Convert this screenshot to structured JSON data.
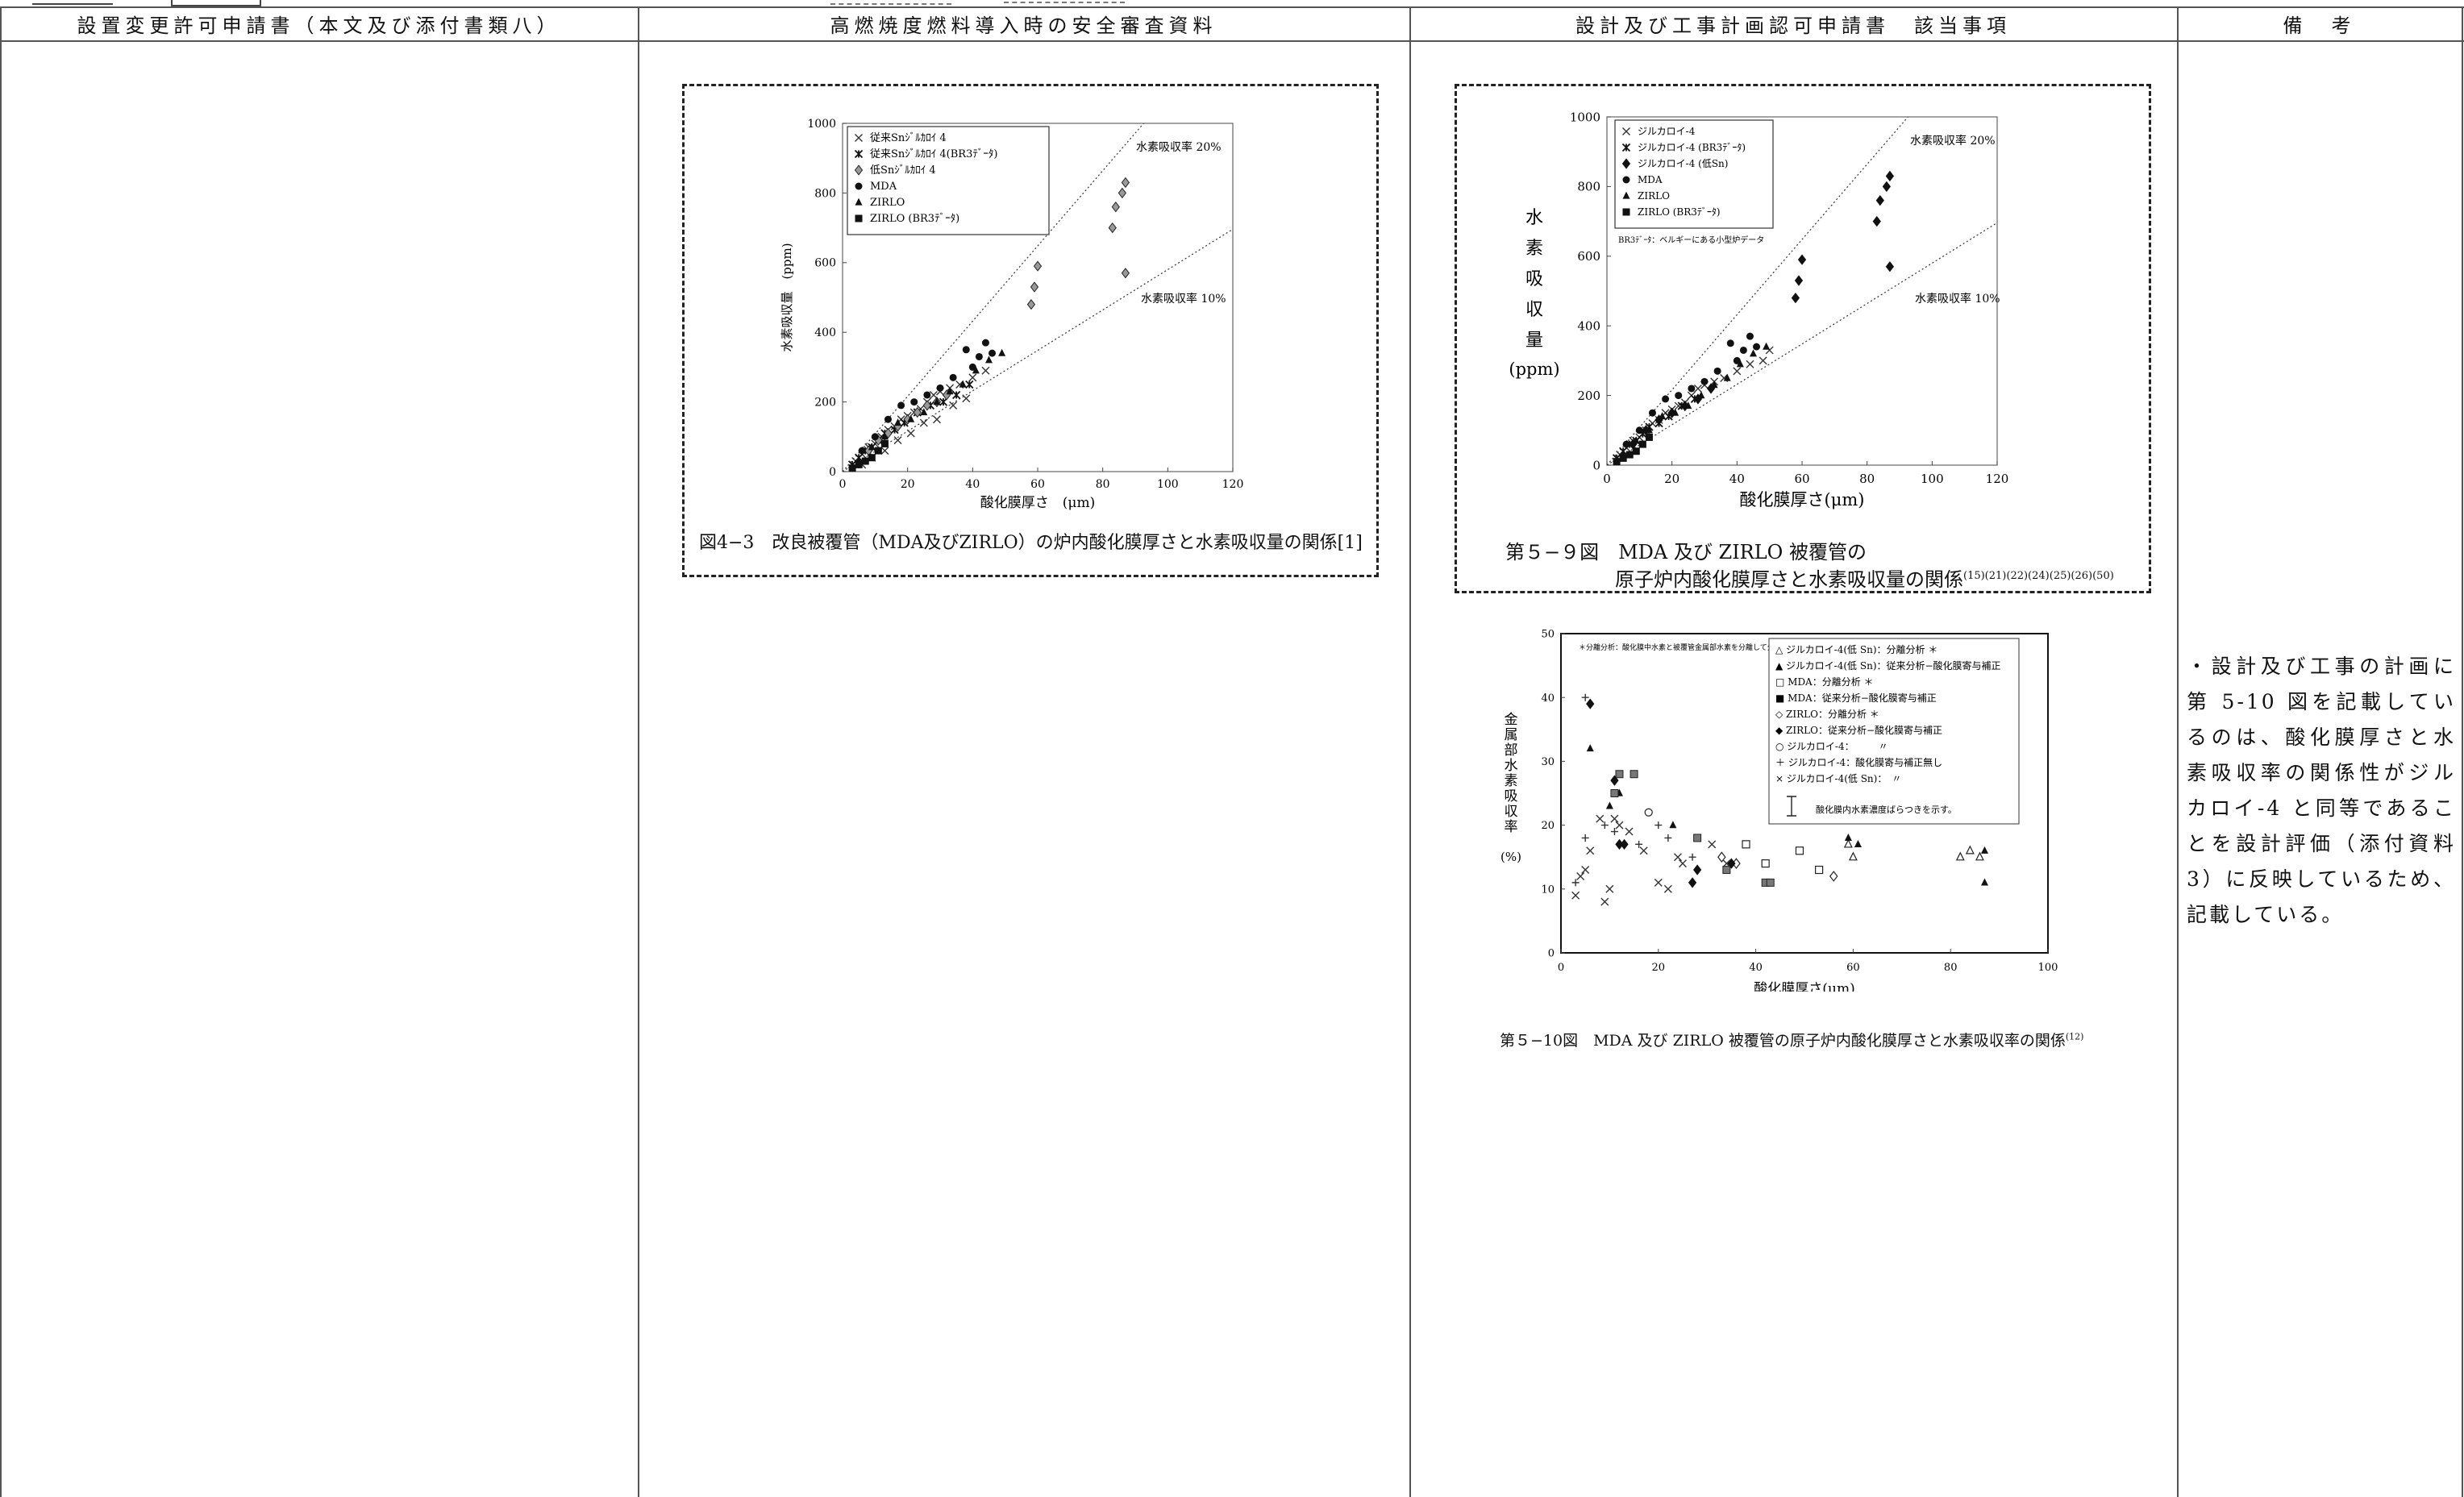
{
  "headers": {
    "col1": "設置変更許可申請書（本文及び添付書類八）",
    "col2": "高燃焼度燃料導入時の安全審査資料",
    "col3": "設計及び工事計画認可申請書　該当事項",
    "col4": "備　考"
  },
  "fig43": {
    "caption": "図4−3　改良被覆管（MDA及びZIRLO）の炉内酸化膜厚さと水素吸収量の関係[1]",
    "ylabel": "水素吸収量　(ppm)",
    "xlabel": "酸化膜厚さ　(μm)",
    "line_label_20": "水素吸収率 20%",
    "line_label_10": "水素吸収率 10%",
    "legend": [
      "従来Snｼﾞﾙｶﾛｲ 4",
      "従来Snｼﾞﾙｶﾛｲ 4(BR3ﾃﾞｰﾀ)",
      "低Snｼﾞﾙｶﾛｲ 4",
      "MDA",
      "ZIRLO",
      "ZIRLO (BR3ﾃﾞｰﾀ)"
    ]
  },
  "fig59": {
    "caption_line1": "第５−９図　MDA 及び ZIRLO 被覆管の",
    "caption_line2": "原子炉内酸化膜厚さと水素吸収量の関係",
    "caption_refs": "(15)(21)(22)(24)(25)(26)(50)",
    "ylabel_chars": [
      "水",
      "素",
      "吸",
      "収",
      "量"
    ],
    "ylabel_unit": "(ppm)",
    "xlabel": "酸化膜厚さ(μm)",
    "line_label_20": "水素吸収率 20%",
    "line_label_10": "水素吸収率 10%",
    "legend": [
      "ジルカロイ-4",
      "ジルカロイ-4 (BR3ﾃﾞｰﾀ)",
      "ジルカロイ-4 (低Sn)",
      "MDA",
      "ZIRLO",
      "ZIRLO (BR3ﾃﾞｰﾀ)"
    ],
    "legend_note": "BR3ﾃﾞｰﾀ：ベルギーにある小型炉データ"
  },
  "fig510": {
    "caption": "第５−10図　MDA 及び ZIRLO 被覆管の原子炉内酸化膜厚さと水素吸収率の関係",
    "caption_ref": "(12)",
    "ylabel_chars": [
      "金",
      "属",
      "部",
      "水",
      "素",
      "吸",
      "収",
      "率"
    ],
    "ylabel_unit": "(%)",
    "xlabel": "酸化膜厚さ(μm)",
    "note": "＊分離分析：酸化膜中水素と被覆管金属部水素を分離して分析した方法",
    "legend": [
      "△ ジルカロイ-4(低 Sn)：分離分析 ＊",
      "▲ ジルカロイ-4(低 Sn)：従来分析−酸化膜寄与補正",
      "□ MDA：分離分析 ＊",
      "■ MDA：従来分析−酸化膜寄与補正",
      "◇ ZIRLO：分離分析 ＊",
      "◆ ZIRLO：従来分析−酸化膜寄与補正",
      "○ ジルカロイ-4：　　　〃",
      "＋ ジルカロイ-4：酸化膜寄与補正無し",
      "× ジルカロイ-4(低 Sn)：　〃"
    ],
    "errorbar_note": "酸化膜内水素濃度ばらつきを示す。"
  },
  "remarks": "・設計及び工事の計画に第 5-10 図を記載しているのは、酸化膜厚さと水素吸収率の関係性がジルカロイ-4 と同等であることを設計評価（添付資料 3）に反映しているため、記載している。",
  "chart_data": [
    {
      "type": "scatter",
      "title": "",
      "xlabel": "酸化膜厚さ　(μm)",
      "ylabel": "水素吸収量　(ppm)",
      "xlim": [
        0,
        120
      ],
      "ylim": [
        0,
        1000
      ],
      "xticks": [
        0,
        20,
        40,
        60,
        80,
        100,
        120
      ],
      "yticks": [
        0,
        200,
        400,
        600,
        800,
        1000
      ],
      "reference_lines": [
        {
          "name": "水素吸収率 20%",
          "slope": 10.8
        },
        {
          "name": "水素吸収率 10%",
          "slope": 5.8
        }
      ],
      "series": [
        {
          "name": "従来Snｼﾞﾙｶﾛｲ 4",
          "marker": "x",
          "x": [
            4,
            6,
            8,
            10,
            12,
            14,
            16,
            18,
            20,
            22,
            24,
            26,
            28,
            30,
            33,
            36,
            40,
            44,
            6,
            9,
            13,
            17,
            21,
            25,
            29,
            34,
            38
          ],
          "y": [
            30,
            50,
            70,
            80,
            100,
            120,
            130,
            150,
            160,
            170,
            180,
            200,
            220,
            230,
            240,
            250,
            270,
            290,
            20,
            40,
            60,
            90,
            110,
            140,
            150,
            190,
            210
          ]
        },
        {
          "name": "従来Snｼﾞﾙｶﾛｲ 4(BR3ﾃﾞｰﾀ)",
          "marker": "asterisk",
          "x": [
            3,
            5,
            7,
            9,
            11,
            13,
            16,
            19,
            23,
            27,
            31,
            35,
            39
          ],
          "y": [
            20,
            40,
            60,
            70,
            90,
            110,
            120,
            140,
            170,
            190,
            200,
            220,
            250
          ]
        },
        {
          "name": "低Snｼﾞﾙｶﾛｲ 4",
          "marker": "diamond",
          "x": [
            8,
            11,
            14,
            17,
            20,
            23,
            26,
            29,
            32,
            58,
            59,
            60,
            83,
            84,
            86,
            87,
            87
          ],
          "y": [
            60,
            90,
            110,
            130,
            150,
            170,
            190,
            200,
            220,
            480,
            530,
            590,
            700,
            760,
            800,
            830,
            570
          ]
        },
        {
          "name": "MDA",
          "marker": "circle",
          "x": [
            6,
            10,
            14,
            18,
            22,
            26,
            30,
            34,
            38,
            40,
            42,
            44,
            46
          ],
          "y": [
            60,
            100,
            150,
            190,
            200,
            220,
            240,
            270,
            350,
            300,
            330,
            370,
            340
          ]
        },
        {
          "name": "ZIRLO",
          "marker": "triangle",
          "x": [
            5,
            9,
            13,
            17,
            21,
            25,
            29,
            33,
            37,
            41,
            45,
            49
          ],
          "y": [
            30,
            70,
            100,
            140,
            150,
            170,
            200,
            230,
            250,
            290,
            320,
            340
          ]
        },
        {
          "name": "ZIRLO (BR3ﾃﾞｰﾀ)",
          "marker": "square",
          "x": [
            3,
            5,
            7,
            9,
            11,
            13
          ],
          "y": [
            10,
            20,
            30,
            40,
            60,
            80
          ]
        }
      ]
    },
    {
      "type": "scatter",
      "title": "",
      "xlabel": "酸化膜厚さ(μm)",
      "ylabel": "水素吸収量 (ppm)",
      "xlim": [
        0,
        120
      ],
      "ylim": [
        0,
        1000
      ],
      "xticks": [
        0,
        20,
        40,
        60,
        80,
        100,
        120
      ],
      "yticks": [
        0,
        200,
        400,
        600,
        800,
        1000
      ],
      "reference_lines": [
        {
          "name": "水素吸収率 20%",
          "slope": 10.8
        },
        {
          "name": "水素吸収率 10%",
          "slope": 5.8
        }
      ],
      "series": [
        {
          "name": "ジルカロイ-4",
          "marker": "x",
          "x": [
            4,
            6,
            8,
            10,
            12,
            14,
            16,
            18,
            20,
            22,
            24,
            26,
            28,
            30,
            33,
            36,
            40,
            44,
            48,
            50
          ],
          "y": [
            30,
            50,
            70,
            80,
            100,
            120,
            130,
            150,
            160,
            170,
            180,
            200,
            220,
            230,
            240,
            250,
            270,
            290,
            300,
            330
          ]
        },
        {
          "name": "ジルカロイ-4 (BR3ﾃﾞｰﾀ)",
          "marker": "asterisk",
          "x": [
            3,
            5,
            7,
            9,
            11,
            13,
            16,
            19,
            23,
            27
          ],
          "y": [
            20,
            40,
            60,
            70,
            90,
            110,
            120,
            140,
            170,
            190
          ]
        },
        {
          "name": "ジルカロイ-4 (低Sn)",
          "marker": "diamond",
          "x": [
            8,
            12,
            16,
            20,
            24,
            28,
            32,
            58,
            59,
            60,
            83,
            84,
            86,
            87,
            87
          ],
          "y": [
            60,
            100,
            130,
            150,
            170,
            190,
            220,
            480,
            530,
            590,
            700,
            760,
            800,
            830,
            570
          ]
        },
        {
          "name": "MDA",
          "marker": "circle",
          "x": [
            6,
            10,
            14,
            18,
            22,
            26,
            30,
            34,
            38,
            40,
            42,
            44,
            46
          ],
          "y": [
            60,
            100,
            150,
            190,
            200,
            220,
            240,
            270,
            350,
            300,
            330,
            370,
            340
          ]
        },
        {
          "name": "ZIRLO",
          "marker": "triangle",
          "x": [
            5,
            9,
            13,
            17,
            21,
            25,
            29,
            33,
            37,
            41,
            45,
            49
          ],
          "y": [
            30,
            70,
            100,
            140,
            150,
            170,
            200,
            230,
            250,
            290,
            320,
            340
          ]
        },
        {
          "name": "ZIRLO (BR3ﾃﾞｰﾀ)",
          "marker": "square",
          "x": [
            3,
            5,
            7,
            9,
            11,
            13
          ],
          "y": [
            10,
            20,
            30,
            40,
            60,
            80
          ]
        }
      ]
    },
    {
      "type": "scatter",
      "title": "",
      "xlabel": "酸化膜厚さ(μm)",
      "ylabel": "金属部水素吸収率 (%)",
      "xlim": [
        0,
        100
      ],
      "ylim": [
        0,
        50
      ],
      "xticks": [
        0,
        20,
        40,
        60,
        80,
        100
      ],
      "yticks": [
        0,
        10,
        20,
        30,
        40,
        50
      ],
      "series": [
        {
          "name": "ジルカロイ-4(低 Sn)：分離分析",
          "marker": "triangle-open",
          "x": [
            59,
            60,
            82,
            84,
            86
          ],
          "y": [
            17,
            15,
            15,
            16,
            15
          ]
        },
        {
          "name": "ジルカロイ-4(低 Sn)：従来分析−酸化膜寄与補正",
          "marker": "triangle",
          "x": [
            6,
            10,
            12,
            23,
            59,
            61,
            87,
            87
          ],
          "y": [
            32,
            23,
            25,
            20,
            18,
            17,
            16,
            11
          ]
        },
        {
          "name": "MDA：分離分析",
          "marker": "square-open",
          "x": [
            38,
            42,
            49,
            53
          ],
          "y": [
            17,
            14,
            16,
            13
          ]
        },
        {
          "name": "MDA：従来分析−酸化膜寄与補正",
          "marker": "square",
          "x": [
            11,
            12,
            15,
            28,
            34,
            42,
            43
          ],
          "y": [
            25,
            28,
            28,
            18,
            13,
            11,
            11
          ]
        },
        {
          "name": "ZIRLO：分離分析",
          "marker": "diamond-open",
          "x": [
            33,
            36,
            56
          ],
          "y": [
            15,
            14,
            12
          ]
        },
        {
          "name": "ZIRLO：従来分析−酸化膜寄与補正",
          "marker": "diamond",
          "x": [
            6,
            11,
            12,
            13,
            27,
            28,
            35
          ],
          "y": [
            39,
            27,
            17,
            17,
            11,
            13,
            14
          ]
        },
        {
          "name": "ジルカロイ-4：　　　〃",
          "marker": "circle-open",
          "x": [
            18
          ],
          "y": [
            22
          ]
        },
        {
          "name": "ジルカロイ-4：酸化膜寄与補正無し",
          "marker": "plus",
          "x": [
            3,
            5,
            5,
            9,
            11,
            16,
            20,
            22,
            27
          ],
          "y": [
            11,
            40,
            18,
            20,
            19,
            17,
            20,
            18,
            15
          ]
        },
        {
          "name": "ジルカロイ-4(低 Sn)：　〃",
          "marker": "x",
          "x": [
            3,
            4,
            5,
            6,
            8,
            9,
            10,
            11,
            12,
            14,
            17,
            20,
            22,
            24,
            25,
            31,
            34
          ],
          "y": [
            9,
            12,
            13,
            16,
            21,
            8,
            10,
            21,
            20,
            19,
            16,
            11,
            10,
            15,
            14,
            17,
            14
          ]
        }
      ]
    }
  ]
}
